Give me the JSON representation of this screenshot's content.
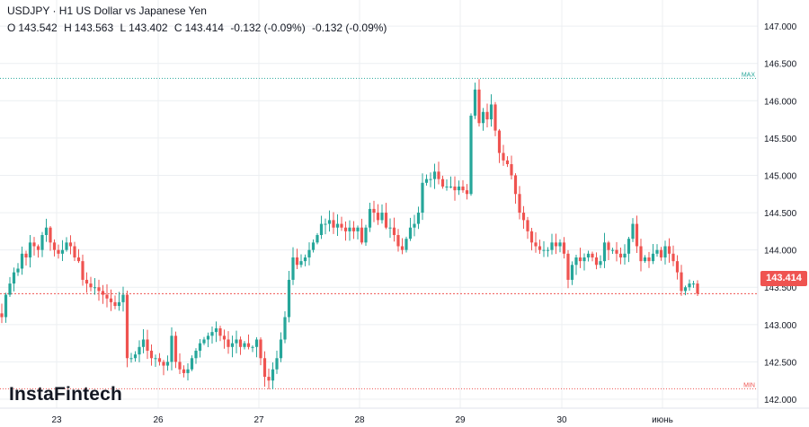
{
  "header": {
    "title": "USDJPY · H1 US Dollar vs Japanese Yen",
    "o_label": "O",
    "o_value": "143.542",
    "h_label": "H",
    "h_value": "143.563",
    "l_label": "L",
    "l_value": "143.402",
    "c_label": "C",
    "c_value": "143.414",
    "change_1": "-0.132 (-0.09%)",
    "change_2": "-0.132 (-0.09%)"
  },
  "logo": "InstaFintech",
  "current_price_label": "143.414",
  "max_label": "MAX",
  "min_label": "MIN",
  "colors": {
    "up": "#26a69a",
    "down": "#ef5350",
    "max_line": "#26a69a",
    "min_line": "#ef5350",
    "grid": "#eceff2",
    "axis_text": "#131722"
  },
  "chart_data": {
    "type": "candlestick",
    "symbol": "USDJPY",
    "timeframe": "H1",
    "ylim": [
      141.88,
      147.35
    ],
    "y_ticks": [
      "142.000",
      "142.500",
      "143.000",
      "143.500",
      "144.000",
      "144.500",
      "145.000",
      "145.500",
      "146.000",
      "146.500",
      "147.000"
    ],
    "x_ticks": [
      "23",
      "26",
      "27",
      "28",
      "29",
      "30",
      "июнь"
    ],
    "max_level": 146.3,
    "min_level": 142.14,
    "current_price": 143.414,
    "closes": [
      143.1,
      143.4,
      143.55,
      143.7,
      143.75,
      143.95,
      143.9,
      144.1,
      144.05,
      144.0,
      144.2,
      144.3,
      144.1,
      144.0,
      143.95,
      144.0,
      144.1,
      144.05,
      143.9,
      143.85,
      143.6,
      143.55,
      143.5,
      143.5,
      143.45,
      143.4,
      143.35,
      143.3,
      143.25,
      143.3,
      143.4,
      142.55,
      142.55,
      142.6,
      142.7,
      142.8,
      142.65,
      142.55,
      142.55,
      142.5,
      142.45,
      142.5,
      142.85,
      142.5,
      142.4,
      142.35,
      142.4,
      142.55,
      142.65,
      142.75,
      142.8,
      142.85,
      142.9,
      142.95,
      142.85,
      142.8,
      142.7,
      142.75,
      142.8,
      142.7,
      142.75,
      142.7,
      142.7,
      142.8,
      142.55,
      142.3,
      142.25,
      142.4,
      142.55,
      142.8,
      143.1,
      143.6,
      143.9,
      143.8,
      143.85,
      143.9,
      144.0,
      144.1,
      144.2,
      144.35,
      144.35,
      144.4,
      144.3,
      144.35,
      144.3,
      144.25,
      144.3,
      144.25,
      144.3,
      144.1,
      144.3,
      144.55,
      144.5,
      144.4,
      144.5,
      144.3,
      144.3,
      144.2,
      144.05,
      144.0,
      144.15,
      144.3,
      144.35,
      144.5,
      144.9,
      144.95,
      144.95,
      145.05,
      144.95,
      144.85,
      144.85,
      144.85,
      144.8,
      144.85,
      144.8,
      144.75,
      145.8,
      146.15,
      145.7,
      145.85,
      145.75,
      145.95,
      145.6,
      145.3,
      145.2,
      145.15,
      145.0,
      144.75,
      144.5,
      144.4,
      144.25,
      144.1,
      144.05,
      144.0,
      144.0,
      144.0,
      144.1,
      144.05,
      144.1,
      143.95,
      143.6,
      143.8,
      143.9,
      143.85,
      143.9,
      143.95,
      143.9,
      143.8,
      143.85,
      144.1,
      144.0,
      144.0,
      143.95,
      143.9,
      143.95,
      144.15,
      144.35,
      144.05,
      143.85,
      143.9,
      143.85,
      143.95,
      144.0,
      143.9,
      144.05,
      143.95,
      143.85,
      143.7,
      143.45,
      143.5,
      143.55,
      143.55,
      143.414
    ]
  }
}
